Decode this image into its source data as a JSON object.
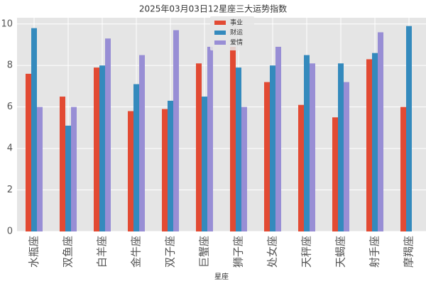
{
  "chart_data": {
    "type": "bar",
    "title": "2025年03月03日12星座三大运势指数",
    "xlabel": "星座",
    "categories": [
      "水瓶座",
      "双鱼座",
      "白羊座",
      "金牛座",
      "双子座",
      "巨蟹座",
      "狮子座",
      "处女座",
      "天秤座",
      "天蝎座",
      "射手座",
      "摩羯座"
    ],
    "series": [
      {
        "name": "事业",
        "color": "#E24A33",
        "values": [
          7.6,
          6.5,
          7.9,
          5.8,
          5.9,
          8.1,
          8.9,
          7.2,
          6.1,
          5.5,
          8.3,
          6.0
        ]
      },
      {
        "name": "财运",
        "color": "#348ABD",
        "values": [
          9.8,
          5.1,
          8.0,
          7.1,
          6.3,
          6.5,
          7.9,
          8.0,
          8.5,
          8.1,
          8.6,
          9.9
        ]
      },
      {
        "name": "爱情",
        "color": "#988ED5",
        "values": [
          6.0,
          6.0,
          9.3,
          8.5,
          9.7,
          8.9,
          6.0,
          8.9,
          8.1,
          7.2,
          9.6,
          null
        ]
      }
    ],
    "ylim": [
      0,
      10.3
    ],
    "yticks": [
      0,
      2,
      4,
      6,
      8,
      10
    ],
    "grid": true,
    "legend": "upper center"
  }
}
